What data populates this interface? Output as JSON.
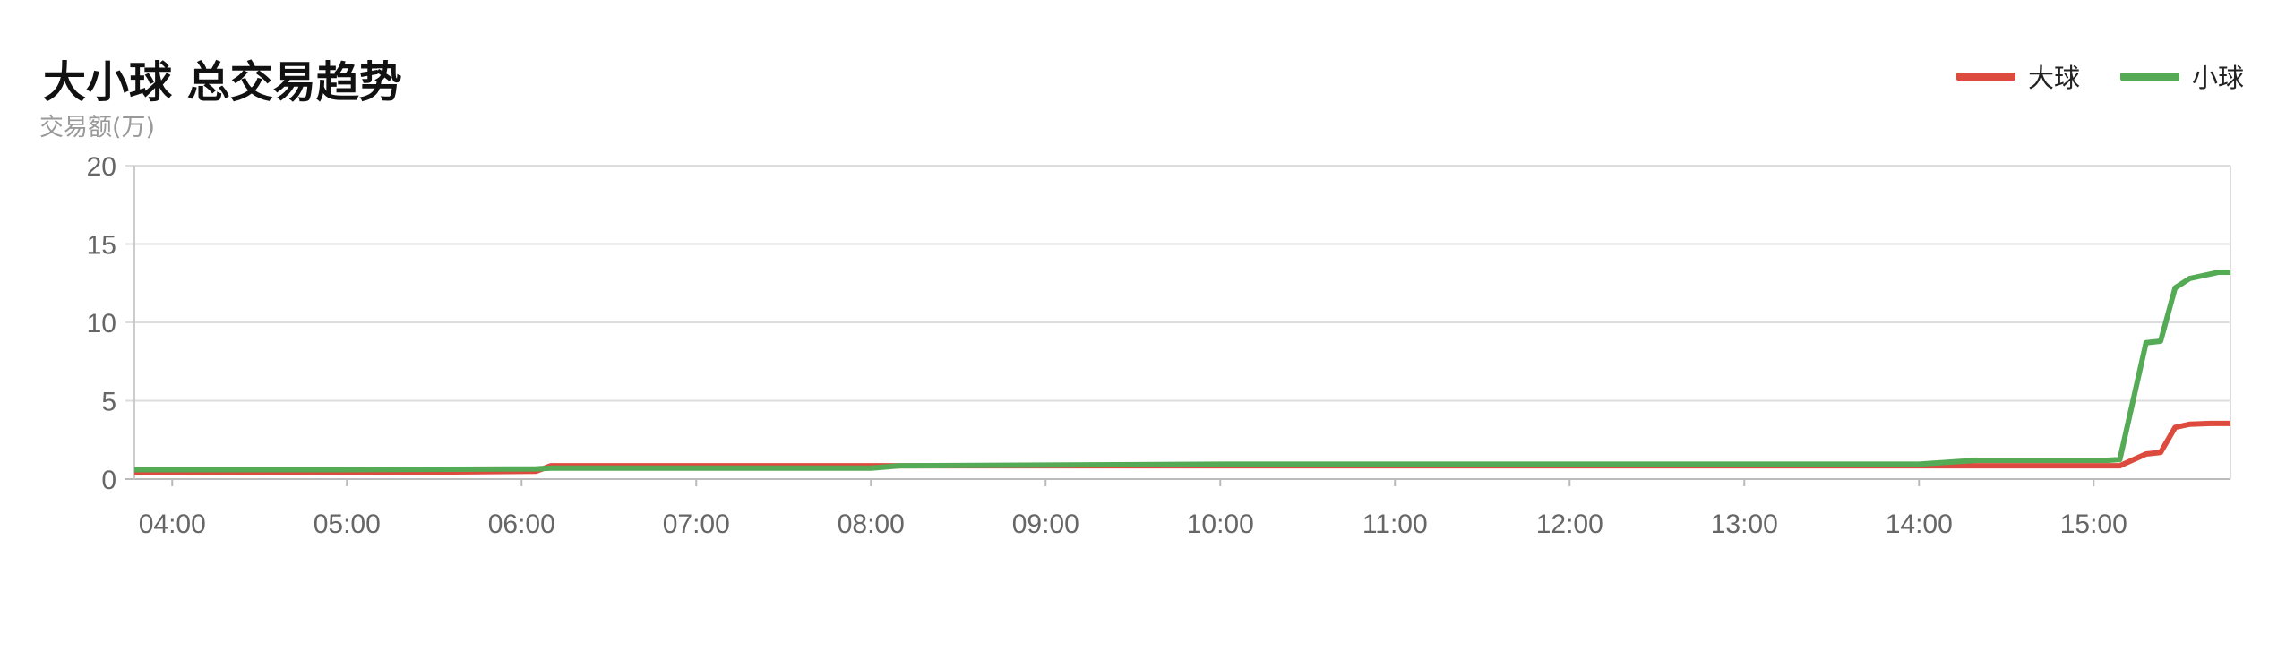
{
  "chart_data": {
    "type": "line",
    "title": "大小球 总交易趋势",
    "ylabel": "交易额(万)",
    "xlabel": "",
    "ylim": [
      0,
      20
    ],
    "yticks": [
      "0",
      "5",
      "10",
      "15",
      "20"
    ],
    "xlim": [
      "03:47",
      "15:47"
    ],
    "xticks": [
      "04:00",
      "05:00",
      "06:00",
      "07:00",
      "08:00",
      "09:00",
      "10:00",
      "11:00",
      "12:00",
      "13:00",
      "14:00",
      "15:00"
    ],
    "grid": true,
    "legend_position": "top-right",
    "series": [
      {
        "name": "大球",
        "color": "#dd4b3e",
        "x": [
          "03:47",
          "05:30",
          "06:05",
          "06:10",
          "08:00",
          "10:00",
          "14:00",
          "15:09",
          "15:18",
          "15:23",
          "15:28",
          "15:33",
          "15:40",
          "15:47"
        ],
        "y": [
          0.4,
          0.45,
          0.5,
          0.85,
          0.85,
          0.85,
          0.85,
          0.85,
          1.6,
          1.7,
          3.3,
          3.5,
          3.55,
          3.55
        ]
      },
      {
        "name": "小球",
        "color": "#55aa55",
        "x": [
          "03:47",
          "05:00",
          "06:05",
          "06:10",
          "08:00",
          "08:10",
          "10:00",
          "12:00",
          "14:00",
          "14:20",
          "15:05",
          "15:09",
          "15:18",
          "15:23",
          "15:28",
          "15:33",
          "15:38",
          "15:43",
          "15:47"
        ],
        "y": [
          0.6,
          0.6,
          0.65,
          0.7,
          0.7,
          0.85,
          0.95,
          0.95,
          0.95,
          1.2,
          1.2,
          1.25,
          8.7,
          8.8,
          12.2,
          12.8,
          13.0,
          13.2,
          13.2
        ]
      }
    ]
  }
}
